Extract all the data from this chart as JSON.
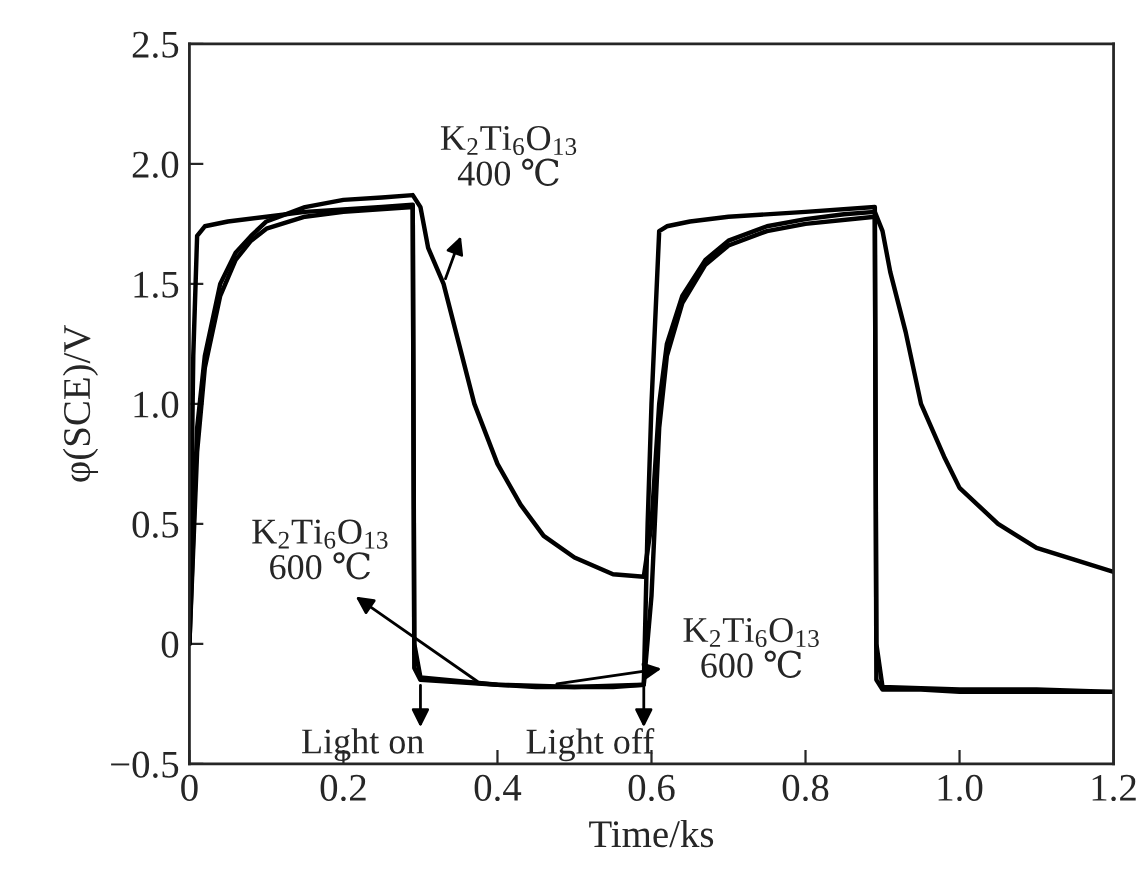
{
  "chart_data": {
    "type": "line",
    "xlabel": "Time/ks",
    "ylabel": "φ(SCE)/V",
    "xlim": [
      0,
      1.2
    ],
    "ylim": [
      -0.5,
      2.5
    ],
    "xticks": [
      0,
      0.2,
      0.4,
      0.6,
      0.8,
      {
        "value": 1,
        "label": "1.0"
      },
      1.2
    ],
    "yticks": [
      {
        "value": -0.5,
        "label": "−0.5"
      },
      0,
      0.5,
      {
        "value": 1,
        "label": "1.0"
      },
      1.5,
      {
        "value": 2,
        "label": "2.0"
      },
      2.5
    ],
    "grid": false,
    "marker": "none",
    "line_style": "solid",
    "series": [
      {
        "color": "#000000",
        "x": [
          0,
          0.005,
          0.01,
          0.02,
          0.05,
          0.1,
          0.15,
          0.2,
          0.25,
          0.29,
          0.292,
          0.3,
          0.35,
          0.4,
          0.45,
          0.5,
          0.55,
          0.59,
          0.595,
          0.6,
          0.61,
          0.62,
          0.65,
          0.7,
          0.8,
          0.89,
          0.892,
          0.9,
          0.95,
          1.0,
          1.1,
          1.2
        ],
        "values": [
          0,
          1.2,
          1.7,
          1.74,
          1.76,
          1.78,
          1.8,
          1.81,
          1.82,
          1.83,
          -0.1,
          -0.15,
          -0.16,
          -0.17,
          -0.18,
          -0.18,
          -0.18,
          -0.17,
          0.5,
          1.0,
          1.72,
          1.74,
          1.76,
          1.78,
          1.8,
          1.82,
          -0.15,
          -0.19,
          -0.19,
          -0.2,
          -0.2,
          -0.2
        ]
      },
      {
        "color": "#000000",
        "x": [
          0,
          0.01,
          0.02,
          0.04,
          0.06,
          0.08,
          0.1,
          0.15,
          0.2,
          0.25,
          0.29,
          0.3,
          0.31,
          0.33,
          0.35,
          0.37,
          0.4,
          0.43,
          0.46,
          0.5,
          0.55,
          0.59,
          0.6,
          0.61,
          0.62,
          0.64,
          0.67,
          0.7,
          0.75,
          0.8,
          0.85,
          0.89,
          0.9,
          0.91,
          0.93,
          0.95,
          0.98,
          1.0,
          1.05,
          1.1,
          1.15,
          1.2
        ],
        "values": [
          0,
          0.9,
          1.2,
          1.5,
          1.63,
          1.7,
          1.76,
          1.82,
          1.85,
          1.86,
          1.87,
          1.82,
          1.65,
          1.5,
          1.25,
          1.0,
          0.75,
          0.58,
          0.45,
          0.36,
          0.29,
          0.28,
          0.5,
          1.0,
          1.25,
          1.45,
          1.6,
          1.68,
          1.74,
          1.77,
          1.79,
          1.8,
          1.72,
          1.55,
          1.3,
          1.0,
          0.78,
          0.65,
          0.5,
          0.4,
          0.35,
          0.3
        ]
      },
      {
        "color": "#000000",
        "x": [
          0,
          0.01,
          0.02,
          0.04,
          0.06,
          0.08,
          0.1,
          0.15,
          0.2,
          0.29,
          0.292,
          0.3,
          0.4,
          0.5,
          0.59,
          0.6,
          0.61,
          0.62,
          0.64,
          0.67,
          0.7,
          0.75,
          0.8,
          0.89,
          0.892,
          0.9,
          1.0,
          1.1,
          1.2
        ],
        "values": [
          0,
          0.8,
          1.15,
          1.45,
          1.6,
          1.68,
          1.73,
          1.78,
          1.8,
          1.82,
          0,
          -0.14,
          -0.17,
          -0.18,
          -0.17,
          0.2,
          0.9,
          1.2,
          1.42,
          1.58,
          1.66,
          1.72,
          1.75,
          1.78,
          0,
          -0.18,
          -0.19,
          -0.19,
          -0.2
        ]
      }
    ],
    "annotations": [
      {
        "text": "K$_{2}$Ti$_{6}$O$_{13}$\n400 ℃",
        "x": 0.33,
        "y": 1.5
      },
      {
        "text": "K$_{2}$Ti$_{6}$O$_{13}$\n600 ℃",
        "x": 0.38,
        "y": -0.17
      },
      {
        "text": "K$_{2}$Ti$_{6}$O$_{13}$\n600 ℃",
        "x": 0.47,
        "y": -0.17
      },
      {
        "text": "Light on",
        "x": 0.3,
        "y": -0.15
      },
      {
        "text": "Light off",
        "x": 0.59,
        "y": -0.15
      }
    ]
  }
}
